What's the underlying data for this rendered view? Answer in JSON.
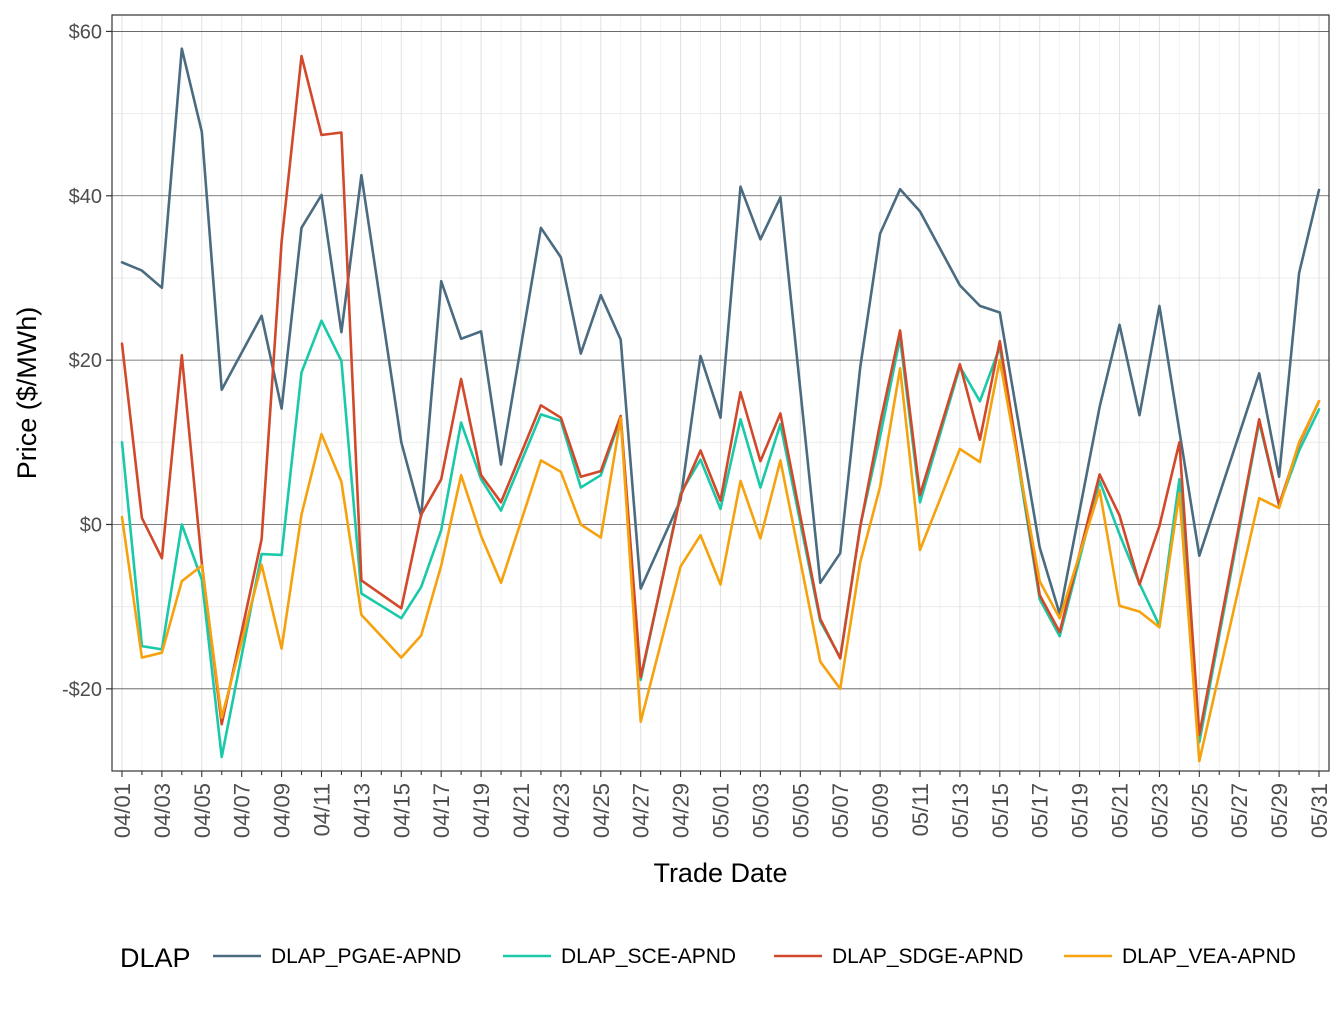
{
  "chart_data": {
    "type": "line",
    "xlabel": "Trade Date",
    "ylabel": "Price ($/MWh)",
    "ylim": [
      -30,
      62
    ],
    "y_ticks": [
      {
        "value": 60,
        "label": "$60"
      },
      {
        "value": 40,
        "label": "$40"
      },
      {
        "value": 20,
        "label": "$20"
      },
      {
        "value": 0,
        "label": "$0"
      },
      {
        "value": -20,
        "label": "-$20"
      }
    ],
    "x_tick_labels": [
      "04/01",
      "04/03",
      "04/05",
      "04/07",
      "04/09",
      "04/11",
      "04/13",
      "04/15",
      "04/17",
      "04/19",
      "04/21",
      "04/23",
      "04/25",
      "04/27",
      "04/29",
      "05/01",
      "05/03",
      "05/05",
      "05/07",
      "05/09",
      "05/11",
      "05/13",
      "05/15",
      "05/17",
      "05/19",
      "05/21",
      "05/23",
      "05/25",
      "05/27",
      "05/29",
      "05/31"
    ],
    "grid": true,
    "legend": {
      "title": "DLAP",
      "position": "bottom"
    },
    "series": [
      {
        "name": "DLAP_PGAE-APND",
        "color": "#4a6b80",
        "points": [
          [
            1,
            31.9
          ],
          [
            2,
            30.9
          ],
          [
            3,
            28.8
          ],
          [
            4,
            57.9
          ],
          [
            5,
            47.8
          ],
          [
            6,
            16.4
          ],
          [
            8,
            25.4
          ],
          [
            9,
            14.1
          ],
          [
            10,
            36.1
          ],
          [
            11,
            40.1
          ],
          [
            12,
            23.4
          ],
          [
            13,
            42.5
          ],
          [
            15,
            10.0
          ],
          [
            16,
            1.0
          ],
          [
            17,
            29.6
          ],
          [
            18,
            22.6
          ],
          [
            19,
            23.5
          ],
          [
            20,
            7.3
          ],
          [
            22,
            36.1
          ],
          [
            23,
            32.5
          ],
          [
            24,
            20.8
          ],
          [
            25,
            27.9
          ],
          [
            26,
            22.5
          ],
          [
            27,
            -7.8
          ],
          [
            29,
            3.0
          ],
          [
            30,
            20.5
          ],
          [
            31,
            13.0
          ],
          [
            32,
            41.1
          ],
          [
            33,
            34.7
          ],
          [
            34,
            39.8
          ],
          [
            36,
            -7.1
          ],
          [
            37,
            -3.5
          ],
          [
            38,
            19.1
          ],
          [
            39,
            35.4
          ],
          [
            40,
            40.8
          ],
          [
            41,
            38.1
          ],
          [
            43,
            29.1
          ],
          [
            44,
            26.6
          ],
          [
            45,
            25.8
          ],
          [
            47,
            -2.8
          ],
          [
            48,
            -10.9
          ],
          [
            50,
            14.3
          ],
          [
            51,
            24.3
          ],
          [
            52,
            13.3
          ],
          [
            53,
            26.6
          ],
          [
            55,
            -3.8
          ],
          [
            58,
            18.4
          ],
          [
            59,
            5.8
          ],
          [
            60,
            30.6
          ],
          [
            61,
            40.7
          ]
        ]
      },
      {
        "name": "DLAP_SCE-APND",
        "color": "#19c9a8",
        "points": [
          [
            1,
            10.0
          ],
          [
            2,
            -14.8
          ],
          [
            3,
            -15.2
          ],
          [
            4,
            0.0
          ],
          [
            5,
            -6.7
          ],
          [
            6,
            -28.3
          ],
          [
            8,
            -3.6
          ],
          [
            9,
            -3.7
          ],
          [
            10,
            18.5
          ],
          [
            11,
            24.8
          ],
          [
            12,
            19.9
          ],
          [
            13,
            -8.4
          ],
          [
            15,
            -11.4
          ],
          [
            16,
            -7.6
          ],
          [
            17,
            -0.7
          ],
          [
            18,
            12.4
          ],
          [
            19,
            5.5
          ],
          [
            20,
            1.7
          ],
          [
            22,
            13.4
          ],
          [
            23,
            12.6
          ],
          [
            24,
            4.5
          ],
          [
            25,
            6.0
          ],
          [
            26,
            13.0
          ],
          [
            27,
            -18.9
          ],
          [
            29,
            3.8
          ],
          [
            30,
            7.9
          ],
          [
            31,
            1.9
          ],
          [
            32,
            12.8
          ],
          [
            33,
            4.5
          ],
          [
            34,
            12.2
          ],
          [
            36,
            -11.8
          ],
          [
            37,
            -16.2
          ],
          [
            38,
            -0.2
          ],
          [
            39,
            10.7
          ],
          [
            40,
            22.7
          ],
          [
            41,
            2.7
          ],
          [
            43,
            19.2
          ],
          [
            44,
            15.0
          ],
          [
            45,
            21.6
          ],
          [
            47,
            -9.1
          ],
          [
            48,
            -13.6
          ],
          [
            50,
            5.3
          ],
          [
            51,
            -1.2
          ],
          [
            52,
            -7.2
          ],
          [
            53,
            -12.3
          ],
          [
            54,
            5.5
          ],
          [
            55,
            -26.5
          ],
          [
            58,
            12.5
          ],
          [
            59,
            2.3
          ],
          [
            60,
            9.0
          ],
          [
            61,
            14.0
          ]
        ]
      },
      {
        "name": "DLAP_SDGE-APND",
        "color": "#d1492a",
        "points": [
          [
            1,
            22.0
          ],
          [
            2,
            0.8
          ],
          [
            3,
            -4.1
          ],
          [
            4,
            20.6
          ],
          [
            5,
            -4.7
          ],
          [
            6,
            -24.3
          ],
          [
            8,
            -1.8
          ],
          [
            9,
            34.4
          ],
          [
            10,
            57.0
          ],
          [
            11,
            47.4
          ],
          [
            12,
            47.7
          ],
          [
            13,
            -6.8
          ],
          [
            15,
            -10.2
          ],
          [
            16,
            1.2
          ],
          [
            17,
            5.5
          ],
          [
            18,
            17.7
          ],
          [
            19,
            6.0
          ],
          [
            20,
            2.7
          ],
          [
            22,
            14.5
          ],
          [
            23,
            13.0
          ],
          [
            24,
            5.8
          ],
          [
            25,
            6.5
          ],
          [
            26,
            13.2
          ],
          [
            27,
            -18.6
          ],
          [
            29,
            3.5
          ],
          [
            30,
            9.0
          ],
          [
            31,
            2.9
          ],
          [
            32,
            16.1
          ],
          [
            33,
            7.7
          ],
          [
            34,
            13.5
          ],
          [
            36,
            -11.5
          ],
          [
            37,
            -16.3
          ],
          [
            38,
            -0.3
          ],
          [
            39,
            12.3
          ],
          [
            40,
            23.6
          ],
          [
            41,
            3.6
          ],
          [
            43,
            19.5
          ],
          [
            44,
            10.3
          ],
          [
            45,
            22.3
          ],
          [
            47,
            -8.6
          ],
          [
            48,
            -13.1
          ],
          [
            50,
            6.1
          ],
          [
            51,
            1.1
          ],
          [
            52,
            -7.3
          ],
          [
            53,
            -0.2
          ],
          [
            54,
            10.0
          ],
          [
            55,
            -25.6
          ],
          [
            58,
            12.8
          ],
          [
            59,
            2.4
          ],
          [
            60,
            9.8
          ],
          [
            61,
            15.0
          ]
        ]
      },
      {
        "name": "DLAP_VEA-APND",
        "color": "#f5a20e",
        "points": [
          [
            1,
            0.9
          ],
          [
            2,
            -16.2
          ],
          [
            3,
            -15.6
          ],
          [
            4,
            -6.9
          ],
          [
            5,
            -5.0
          ],
          [
            6,
            -23.5
          ],
          [
            8,
            -4.9
          ],
          [
            9,
            -15.1
          ],
          [
            10,
            1.2
          ],
          [
            11,
            11.0
          ],
          [
            12,
            5.2
          ],
          [
            13,
            -11.0
          ],
          [
            15,
            -16.2
          ],
          [
            16,
            -13.5
          ],
          [
            17,
            -5.0
          ],
          [
            18,
            6.0
          ],
          [
            19,
            -1.4
          ],
          [
            20,
            -7.1
          ],
          [
            22,
            7.8
          ],
          [
            23,
            6.4
          ],
          [
            24,
            0.0
          ],
          [
            25,
            -1.6
          ],
          [
            26,
            13.0
          ],
          [
            27,
            -24.0
          ],
          [
            29,
            -5.1
          ],
          [
            30,
            -1.3
          ],
          [
            31,
            -7.3
          ],
          [
            32,
            5.3
          ],
          [
            33,
            -1.7
          ],
          [
            34,
            7.8
          ],
          [
            36,
            -16.7
          ],
          [
            37,
            -20.0
          ],
          [
            38,
            -4.6
          ],
          [
            39,
            4.6
          ],
          [
            40,
            19.0
          ],
          [
            41,
            -3.1
          ],
          [
            43,
            9.2
          ],
          [
            44,
            7.6
          ],
          [
            45,
            20.0
          ],
          [
            47,
            -6.9
          ],
          [
            48,
            -11.4
          ],
          [
            50,
            4.2
          ],
          [
            51,
            -9.9
          ],
          [
            52,
            -10.6
          ],
          [
            53,
            -12.5
          ],
          [
            54,
            3.8
          ],
          [
            55,
            -28.8
          ],
          [
            58,
            3.2
          ],
          [
            59,
            2.0
          ],
          [
            60,
            10.0
          ],
          [
            61,
            15.0
          ]
        ]
      }
    ]
  }
}
